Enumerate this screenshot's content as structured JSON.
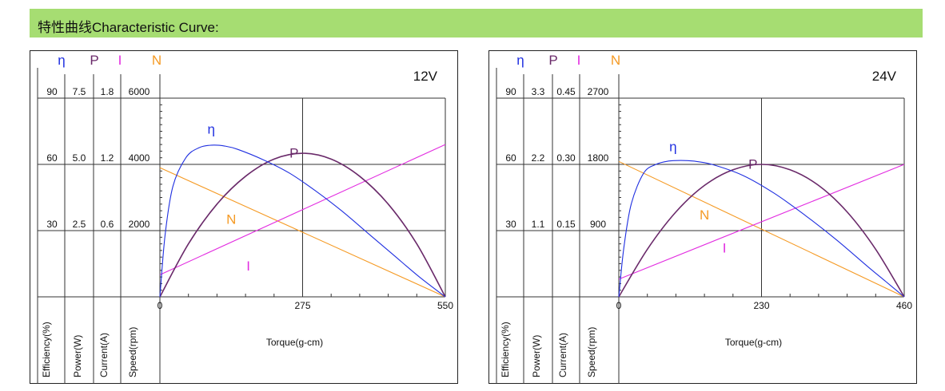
{
  "header": {
    "title": "特性曲线Characteristic Curve:"
  },
  "legend_symbols": {
    "efficiency": {
      "symbol": "η",
      "color": "#1f2fe0"
    },
    "power": {
      "symbol": "P",
      "color": "#6a2a6a"
    },
    "current": {
      "symbol": "I",
      "color": "#e22ce0"
    },
    "speed": {
      "symbol": "N",
      "color": "#f59a24"
    }
  },
  "chart_data": [
    {
      "type": "line",
      "title": "12V",
      "xlabel": "Torque(g-cm)",
      "x_ticks": [
        0,
        275,
        550
      ],
      "xlim": [
        0,
        550
      ],
      "axis_labels": [
        "Efficiency(%)",
        "Power(W)",
        "Current(A)",
        "Speed(rpm)"
      ],
      "axis_tick_rows": [
        [
          "90",
          "7.5",
          "1.8",
          "6000"
        ],
        [
          "60",
          "5.0",
          "1.2",
          "4000"
        ],
        [
          "30",
          "2.5",
          "0.6",
          "2000"
        ]
      ],
      "ylim": {
        "efficiency": [
          0,
          90
        ],
        "power": [
          0,
          7.5
        ],
        "current": [
          0,
          1.8
        ],
        "speed": [
          0,
          6000
        ]
      },
      "curve_labels": [
        {
          "text": "η",
          "color": "#1f2fe0",
          "series": "efficiency"
        },
        {
          "text": "P",
          "color": "#6a2a6a",
          "series": "power"
        },
        {
          "text": "N",
          "color": "#f59a24",
          "series": "speed"
        },
        {
          "text": "I",
          "color": "#e22ce0",
          "series": "current"
        }
      ],
      "series": [
        {
          "key": "speed",
          "color": "#f59a24",
          "x": [
            0,
            550
          ],
          "values": [
            3900,
            0
          ]
        },
        {
          "key": "current",
          "color": "#e22ce0",
          "x": [
            0,
            550
          ],
          "values": [
            0.2,
            1.38
          ]
        },
        {
          "key": "power",
          "color": "#6a2a6a",
          "x": [
            0,
            55,
            110,
            165,
            220,
            275,
            330,
            385,
            440,
            495,
            550
          ],
          "values": [
            0,
            2.0,
            3.5,
            4.55,
            5.2,
            5.42,
            5.2,
            4.55,
            3.5,
            2.0,
            0
          ]
        },
        {
          "key": "efficiency",
          "color": "#1f2fe0",
          "x": [
            0,
            10,
            25,
            50,
            75,
            100,
            125,
            150,
            200,
            250,
            300,
            350,
            400,
            450,
            500,
            550
          ],
          "values": [
            0,
            28,
            50,
            63,
            67.5,
            68.7,
            68.3,
            66.8,
            62,
            56,
            48,
            39,
            29,
            19,
            9,
            0
          ]
        }
      ]
    },
    {
      "type": "line",
      "title": "24V",
      "xlabel": "Torque(g-cm)",
      "x_ticks": [
        0,
        230,
        460
      ],
      "xlim": [
        0,
        460
      ],
      "axis_labels": [
        "Efficiency(%)",
        "Power(W)",
        "Current(A)",
        "Speed(rpm)"
      ],
      "axis_tick_rows": [
        [
          "90",
          "3.3",
          "0.45",
          "2700"
        ],
        [
          "60",
          "2.2",
          "0.30",
          "1800"
        ],
        [
          "30",
          "1.1",
          "0.15",
          "900"
        ]
      ],
      "ylim": {
        "efficiency": [
          0,
          90
        ],
        "power": [
          0,
          3.3
        ],
        "current": [
          0,
          0.45
        ],
        "speed": [
          0,
          2700
        ]
      },
      "curve_labels": [
        {
          "text": "η",
          "color": "#1f2fe0",
          "series": "efficiency"
        },
        {
          "text": "P",
          "color": "#6a2a6a",
          "series": "power"
        },
        {
          "text": "N",
          "color": "#f59a24",
          "series": "speed"
        },
        {
          "text": "I",
          "color": "#e22ce0",
          "series": "current"
        }
      ],
      "series": [
        {
          "key": "speed",
          "color": "#f59a24",
          "x": [
            0,
            460
          ],
          "values": [
            1840,
            0
          ]
        },
        {
          "key": "current",
          "color": "#e22ce0",
          "x": [
            0,
            460
          ],
          "values": [
            0.04,
            0.3
          ]
        },
        {
          "key": "power",
          "color": "#6a2a6a",
          "x": [
            0,
            46,
            92,
            138,
            184,
            230,
            276,
            322,
            368,
            414,
            460
          ],
          "values": [
            0,
            0.79,
            1.41,
            1.85,
            2.11,
            2.2,
            2.11,
            1.85,
            1.41,
            0.79,
            0
          ]
        },
        {
          "key": "efficiency",
          "color": "#1f2fe0",
          "x": [
            0,
            8,
            20,
            40,
            60,
            80,
            100,
            120,
            150,
            200,
            250,
            300,
            350,
            400,
            430,
            460
          ],
          "values": [
            0,
            22,
            42,
            56,
            60,
            61.5,
            61.8,
            61.5,
            60,
            55,
            47,
            37,
            26,
            14,
            7,
            0
          ]
        }
      ]
    }
  ]
}
